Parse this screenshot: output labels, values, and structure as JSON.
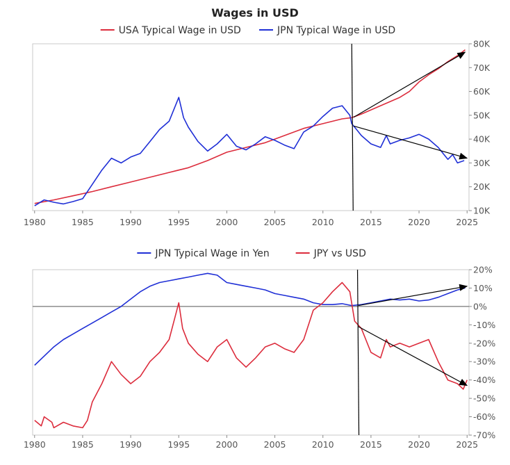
{
  "chart_data": [
    {
      "type": "line",
      "title": "Wages in USD",
      "x_ticks": [
        "1980",
        "1985",
        "1990",
        "1995",
        "2000",
        "2005",
        "2010",
        "2015",
        "2020",
        "2025"
      ],
      "y_ticks": [
        "10K",
        "20K",
        "30K",
        "40K",
        "50K",
        "60K",
        "70K",
        "80K"
      ],
      "ylim": [
        10000,
        80000
      ],
      "xlim": [
        1979.8,
        2025.2
      ],
      "y_axis_side": "right",
      "legend_placement": "top",
      "grid": false,
      "vertical_marker_x": 2013.0,
      "series": [
        {
          "name": "USA Typical Wage in USD",
          "color": "#dc2c3c",
          "points": [
            [
              1980,
              13000
            ],
            [
              1982,
              14500
            ],
            [
              1984,
              16200
            ],
            [
              1986,
              18000
            ],
            [
              1988,
              20000
            ],
            [
              1990,
              22000
            ],
            [
              1992,
              24000
            ],
            [
              1994,
              26000
            ],
            [
              1996,
              28000
            ],
            [
              1998,
              31000
            ],
            [
              2000,
              34500
            ],
            [
              2002,
              36500
            ],
            [
              2004,
              38500
            ],
            [
              2006,
              41500
            ],
            [
              2008,
              44500
            ],
            [
              2010,
              46500
            ],
            [
              2012,
              48500
            ],
            [
              2013,
              49000
            ],
            [
              2014,
              50500
            ],
            [
              2016,
              54000
            ],
            [
              2018,
              57500
            ],
            [
              2019,
              60000
            ],
            [
              2020,
              64000
            ],
            [
              2021,
              67000
            ],
            [
              2022,
              69500
            ],
            [
              2023,
              72500
            ],
            [
              2024,
              75000
            ],
            [
              2024.8,
              77500
            ]
          ]
        },
        {
          "name": "JPN Typical Wage in USD",
          "color": "#1f2fd6",
          "points": [
            [
              1980,
              12000
            ],
            [
              1981,
              14500
            ],
            [
              1982,
              13500
            ],
            [
              1983,
              12800
            ],
            [
              1984,
              13800
            ],
            [
              1985,
              15000
            ],
            [
              1986,
              21000
            ],
            [
              1987,
              27000
            ],
            [
              1988,
              32000
            ],
            [
              1989,
              30000
            ],
            [
              1990,
              32500
            ],
            [
              1991,
              34000
            ],
            [
              1992,
              39000
            ],
            [
              1993,
              44000
            ],
            [
              1994,
              47500
            ],
            [
              1995,
              57500
            ],
            [
              1995.5,
              49000
            ],
            [
              1996,
              45000
            ],
            [
              1997,
              39000
            ],
            [
              1998,
              35000
            ],
            [
              1999,
              38000
            ],
            [
              2000,
              42000
            ],
            [
              2001,
              37000
            ],
            [
              2002,
              35500
            ],
            [
              2003,
              38000
            ],
            [
              2004,
              41000
            ],
            [
              2005,
              39500
            ],
            [
              2006,
              37500
            ],
            [
              2007,
              36000
            ],
            [
              2008,
              43000
            ],
            [
              2009,
              45500
            ],
            [
              2010,
              49500
            ],
            [
              2011,
              53000
            ],
            [
              2012,
              54000
            ],
            [
              2012.8,
              50000
            ],
            [
              2013,
              46500
            ],
            [
              2013.5,
              44000
            ],
            [
              2014,
              41500
            ],
            [
              2015,
              38000
            ],
            [
              2016,
              36500
            ],
            [
              2016.6,
              41500
            ],
            [
              2017,
              38000
            ],
            [
              2018,
              39500
            ],
            [
              2019,
              40500
            ],
            [
              2020,
              42000
            ],
            [
              2021,
              40000
            ],
            [
              2022,
              36500
            ],
            [
              2023,
              31500
            ],
            [
              2023.5,
              33500
            ],
            [
              2024,
              30000
            ],
            [
              2024.7,
              31000
            ]
          ]
        }
      ],
      "annotations": [
        {
          "type": "arrow",
          "from": [
            2013.2,
            49200
          ],
          "to": [
            2024.8,
            76500
          ]
        },
        {
          "type": "arrow",
          "from": [
            2013.2,
            45500
          ],
          "to": [
            2025.0,
            32000
          ]
        }
      ]
    },
    {
      "type": "line",
      "title": "",
      "x_ticks": [
        "1980",
        "1985",
        "1990",
        "1995",
        "2000",
        "2005",
        "2010",
        "2015",
        "2020",
        "2025"
      ],
      "y_ticks": [
        "20%",
        "10%",
        "0%",
        "-10%",
        "-20%",
        "-30%",
        "-40%",
        "-50%",
        "-60%",
        "-70%"
      ],
      "ylim": [
        -70,
        20
      ],
      "xlim": [
        1979.8,
        2025.2
      ],
      "y_axis_side": "right",
      "legend_placement": "top",
      "grid": false,
      "zero_line": true,
      "vertical_marker_x": 2013.6,
      "series": [
        {
          "name": "JPN Typical Wage in Yen",
          "color": "#1f2fd6",
          "points": [
            [
              1980,
              -32
            ],
            [
              1981,
              -27
            ],
            [
              1982,
              -22
            ],
            [
              1983,
              -18
            ],
            [
              1984,
              -15
            ],
            [
              1985,
              -12
            ],
            [
              1986,
              -9
            ],
            [
              1987,
              -6
            ],
            [
              1988,
              -3
            ],
            [
              1989,
              0
            ],
            [
              1990,
              4
            ],
            [
              1991,
              8
            ],
            [
              1992,
              11
            ],
            [
              1993,
              13
            ],
            [
              1994,
              14
            ],
            [
              1995,
              15
            ],
            [
              1996,
              16
            ],
            [
              1997,
              17
            ],
            [
              1998,
              18
            ],
            [
              1999,
              17
            ],
            [
              2000,
              13
            ],
            [
              2001,
              12
            ],
            [
              2002,
              11
            ],
            [
              2003,
              10
            ],
            [
              2004,
              9
            ],
            [
              2005,
              7
            ],
            [
              2006,
              6
            ],
            [
              2007,
              5
            ],
            [
              2008,
              4
            ],
            [
              2009,
              2
            ],
            [
              2010,
              1
            ],
            [
              2011,
              1
            ],
            [
              2012,
              1.5
            ],
            [
              2013,
              0.5
            ],
            [
              2014,
              1
            ],
            [
              2015,
              2
            ],
            [
              2016,
              3
            ],
            [
              2017,
              4
            ],
            [
              2018,
              3.5
            ],
            [
              2019,
              4
            ],
            [
              2020,
              3
            ],
            [
              2021,
              3.5
            ],
            [
              2022,
              5
            ],
            [
              2023,
              7
            ],
            [
              2024,
              9
            ],
            [
              2024.8,
              10
            ]
          ]
        },
        {
          "name": "JPY vs USD",
          "color": "#dc2c3c",
          "points": [
            [
              1980,
              -62
            ],
            [
              1980.7,
              -65
            ],
            [
              1981,
              -60
            ],
            [
              1981.8,
              -63
            ],
            [
              1982,
              -66
            ],
            [
              1983,
              -63
            ],
            [
              1984,
              -65
            ],
            [
              1985,
              -66
            ],
            [
              1985.5,
              -62
            ],
            [
              1986,
              -52
            ],
            [
              1987,
              -42
            ],
            [
              1988,
              -30
            ],
            [
              1989,
              -37
            ],
            [
              1990,
              -42
            ],
            [
              1991,
              -38
            ],
            [
              1992,
              -30
            ],
            [
              1993,
              -25
            ],
            [
              1994,
              -18
            ],
            [
              1995,
              2
            ],
            [
              1995.4,
              -12
            ],
            [
              1996,
              -20
            ],
            [
              1997,
              -26
            ],
            [
              1998,
              -30
            ],
            [
              1999,
              -22
            ],
            [
              2000,
              -18
            ],
            [
              2001,
              -28
            ],
            [
              2002,
              -33
            ],
            [
              2003,
              -28
            ],
            [
              2004,
              -22
            ],
            [
              2005,
              -20
            ],
            [
              2006,
              -23
            ],
            [
              2007,
              -25
            ],
            [
              2008,
              -18
            ],
            [
              2009,
              -2
            ],
            [
              2010,
              2
            ],
            [
              2011,
              8
            ],
            [
              2012,
              13
            ],
            [
              2012.8,
              8
            ],
            [
              2013.3,
              -8
            ],
            [
              2014,
              -12
            ],
            [
              2015,
              -25
            ],
            [
              2016,
              -28
            ],
            [
              2016.6,
              -18
            ],
            [
              2017,
              -22
            ],
            [
              2018,
              -20
            ],
            [
              2019,
              -22
            ],
            [
              2020,
              -20
            ],
            [
              2021,
              -18
            ],
            [
              2022,
              -30
            ],
            [
              2023,
              -40
            ],
            [
              2024,
              -42
            ],
            [
              2024.6,
              -45
            ],
            [
              2025,
              -40
            ]
          ]
        }
      ],
      "annotations": [
        {
          "type": "arrow",
          "from": [
            2013.7,
            0.5
          ],
          "to": [
            2025.0,
            11
          ]
        },
        {
          "type": "arrow",
          "from": [
            2013.7,
            -11
          ],
          "to": [
            2025.0,
            -43
          ]
        }
      ]
    }
  ]
}
